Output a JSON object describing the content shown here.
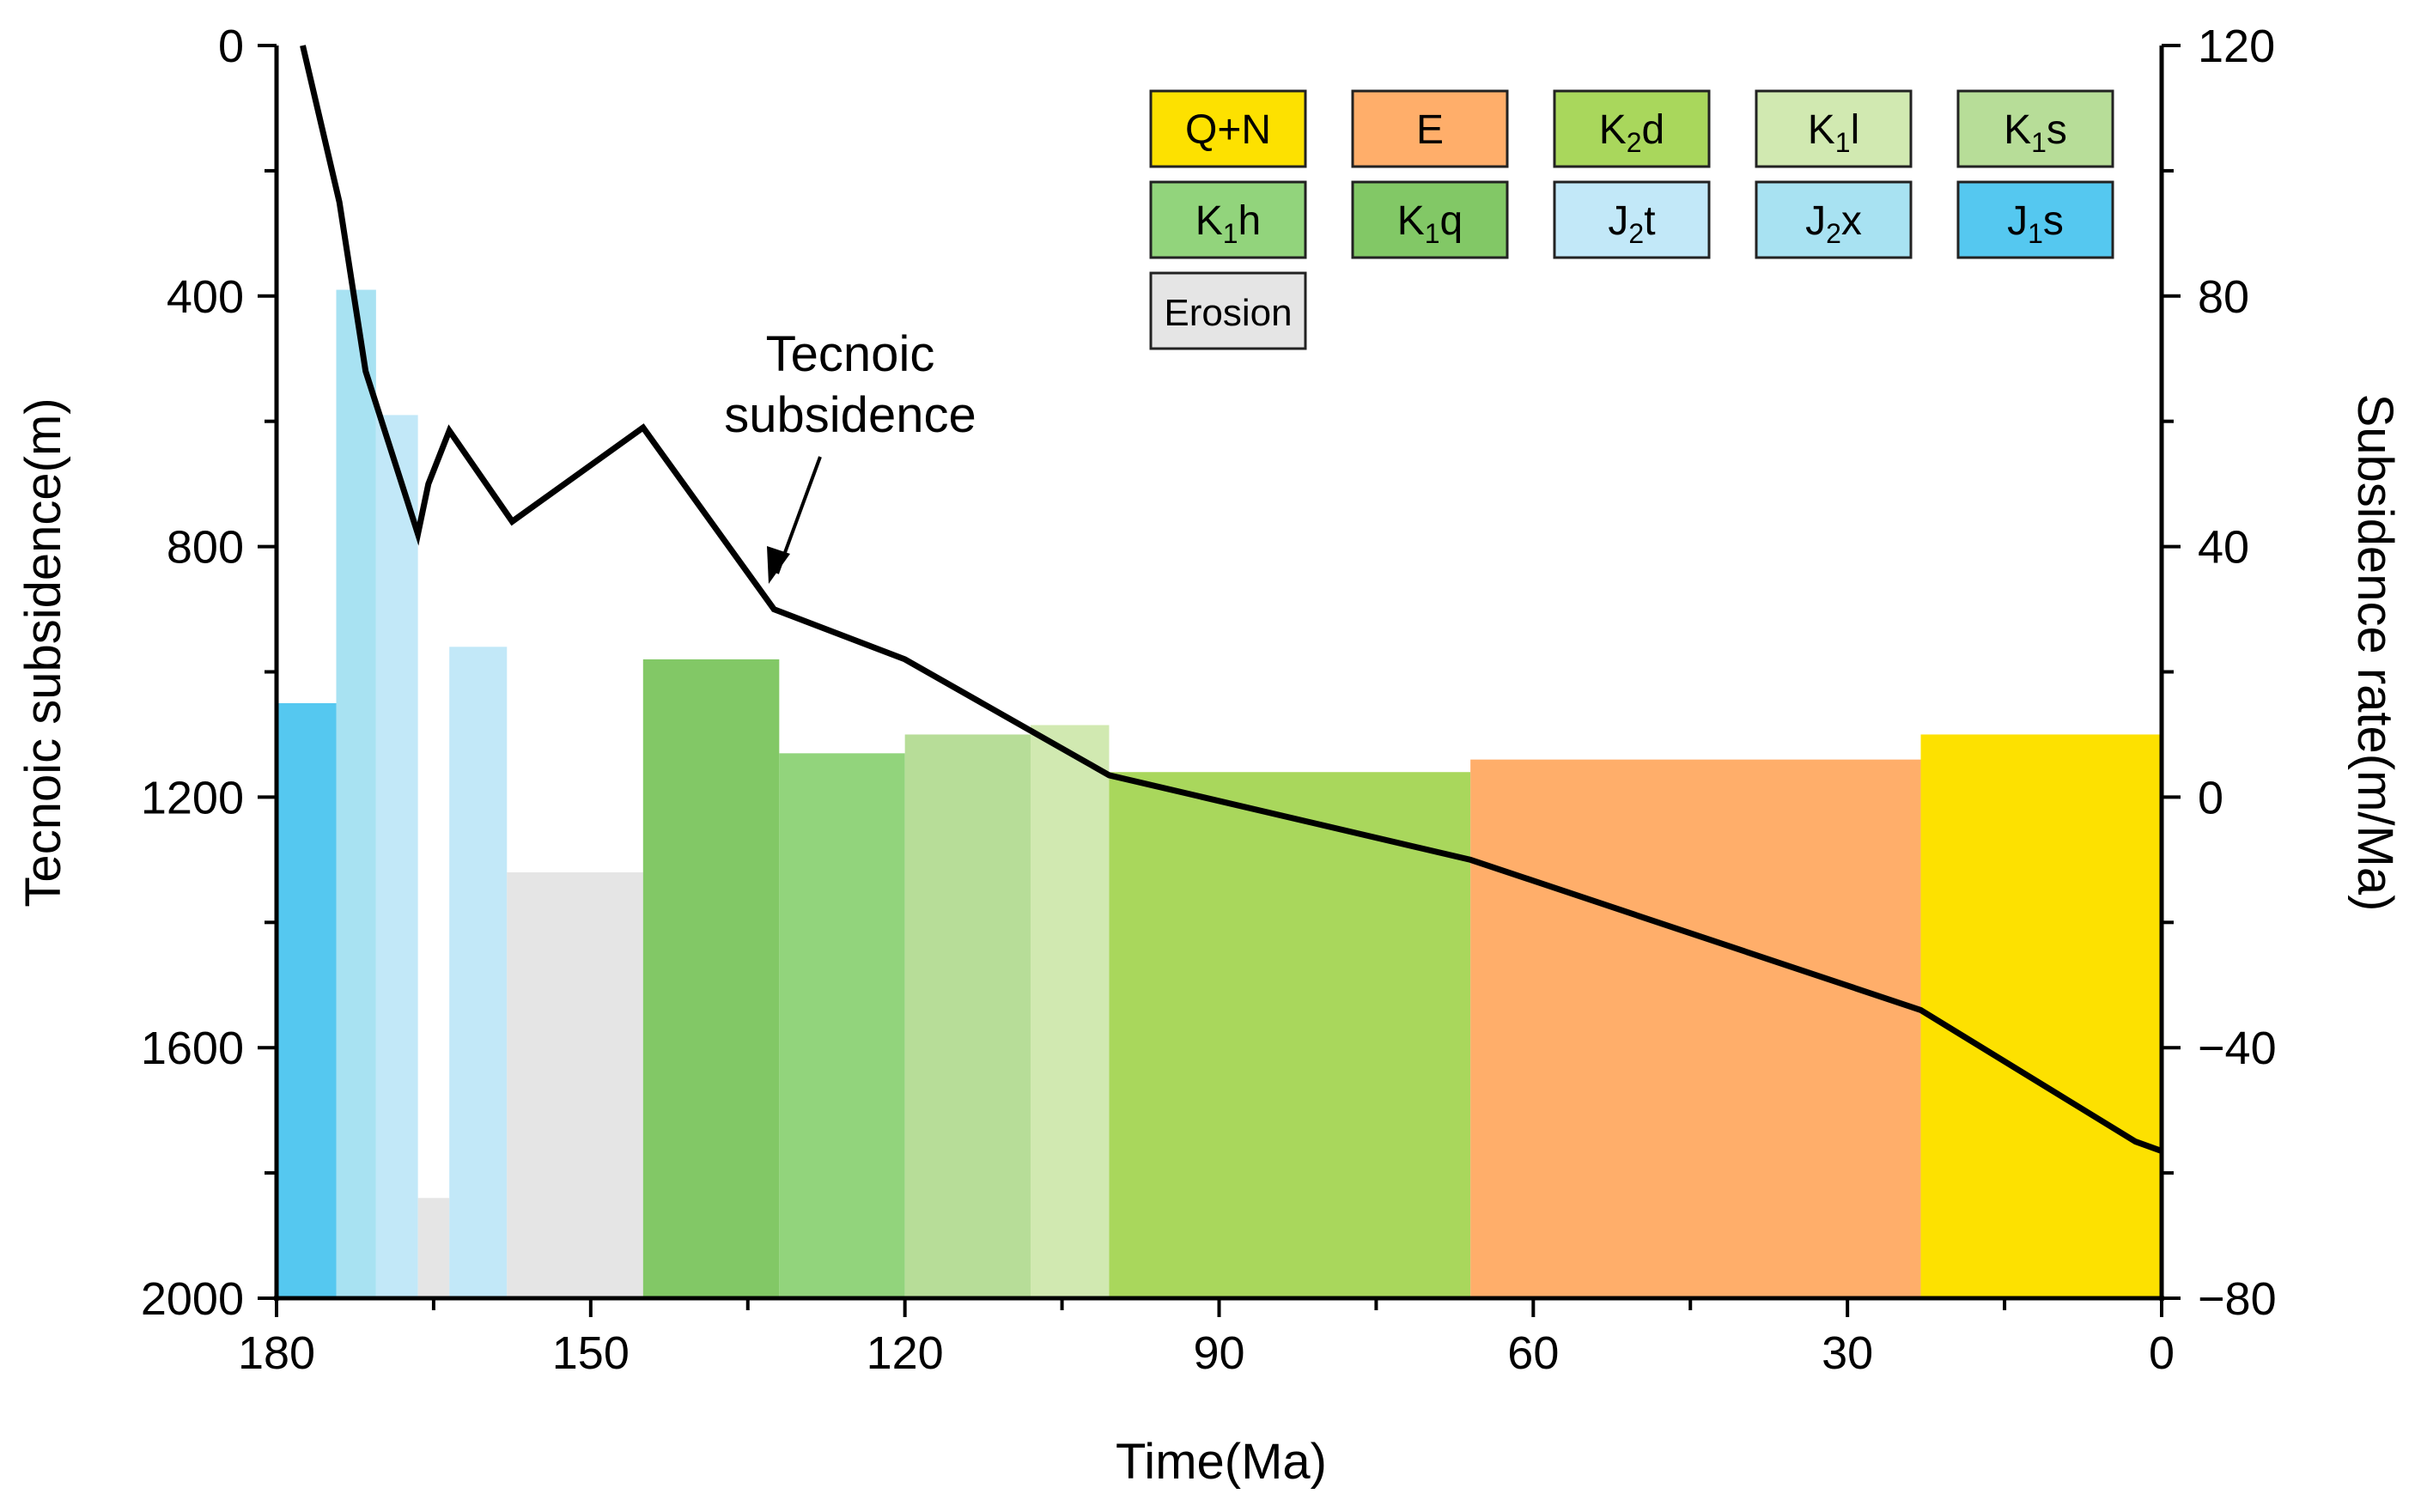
{
  "chart_data": {
    "type": "bar+line",
    "title": "",
    "xlabel": "Time(Ma)",
    "ylabel_left": "Tecnoic subsidence(m)",
    "ylabel_right": "Subsidence rate(m/Ma)",
    "xlim": [
      180,
      0
    ],
    "ylim_left": [
      0,
      2000
    ],
    "ylim_right": [
      -80,
      120
    ],
    "x_ticks": [
      "180",
      "150",
      "120",
      "90",
      "60",
      "30",
      "0"
    ],
    "y_left_ticks": [
      "0",
      "400",
      "800",
      "1200",
      "1600",
      "2000"
    ],
    "y_right_ticks": [
      "120",
      "80",
      "40",
      "0",
      "−40",
      "−80"
    ],
    "bars": [
      {
        "layer": "J1s",
        "x_start": 180,
        "x_end": 174.3,
        "rate": 15,
        "color": "#55c8f0"
      },
      {
        "layer": "J2x",
        "x_start": 174.3,
        "x_end": 170.5,
        "rate": 81,
        "color": "#a8e2f2"
      },
      {
        "layer": "J2t",
        "x_start": 170.5,
        "x_end": 166.5,
        "rate": 61,
        "color": "#c2e8f8"
      },
      {
        "layer": "Erosion",
        "x_start": 166.5,
        "x_end": 163.5,
        "rate": -64,
        "color": "#e5e5e5"
      },
      {
        "layer": "J2t",
        "x_start": 163.5,
        "x_end": 158,
        "rate": 24,
        "color": "#c2e8f8"
      },
      {
        "layer": "Erosion",
        "x_start": 158,
        "x_end": 145,
        "rate": -12,
        "color": "#e5e5e5"
      },
      {
        "layer": "K1q",
        "x_start": 145,
        "x_end": 132,
        "rate": 22,
        "color": "#82c866"
      },
      {
        "layer": "K1h",
        "x_start": 132,
        "x_end": 120,
        "rate": 7,
        "color": "#92d47c"
      },
      {
        "layer": "K1s",
        "x_start": 120,
        "x_end": 108,
        "rate": 10,
        "color": "#b7dd98"
      },
      {
        "layer": "K1l",
        "x_start": 108,
        "x_end": 100.5,
        "rate": 11.5,
        "color": "#d1e9b1"
      },
      {
        "layer": "K2d",
        "x_start": 100.5,
        "x_end": 66,
        "rate": 4,
        "color": "#a9d75c"
      },
      {
        "layer": "E",
        "x_start": 66,
        "x_end": 23,
        "rate": 6,
        "color": "#ffae6a"
      },
      {
        "layer": "Q+N",
        "x_start": 23,
        "x_end": 0,
        "rate": 10,
        "color": "#fde100"
      }
    ],
    "series": [
      {
        "name": "Tecnoic subsidence",
        "x": [
          177.5,
          174,
          171.5,
          166.5,
          165.5,
          163.5,
          157.5,
          145,
          132.5,
          120,
          100.5,
          66,
          23,
          2.5,
          0
        ],
        "y": [
          0,
          250,
          520,
          780,
          700,
          615,
          760,
          610,
          900,
          980,
          1165,
          1300,
          1540,
          1750,
          1765
        ]
      }
    ],
    "annotation": {
      "lines": [
        "Tecnoic",
        "subsidence"
      ]
    },
    "legend": [
      {
        "base": "Q+N",
        "sub": "",
        "tail": "",
        "color": "#fde100"
      },
      {
        "base": "E",
        "sub": "",
        "tail": "",
        "color": "#ffae6a"
      },
      {
        "base": "K",
        "sub": "2",
        "tail": "d",
        "color": "#a9d75c"
      },
      {
        "base": "K",
        "sub": "1",
        "tail": "l",
        "color": "#d1e9b1"
      },
      {
        "base": "K",
        "sub": "1",
        "tail": "s",
        "color": "#b7dd98"
      },
      {
        "base": "K",
        "sub": "1",
        "tail": "h",
        "color": "#92d47c"
      },
      {
        "base": "K",
        "sub": "1",
        "tail": "q",
        "color": "#82c866"
      },
      {
        "base": "J",
        "sub": "2",
        "tail": "t",
        "color": "#c2e8f8"
      },
      {
        "base": "J",
        "sub": "2",
        "tail": "x",
        "color": "#a8e2f2"
      },
      {
        "base": "J",
        "sub": "1",
        "tail": "s",
        "color": "#55c8f0"
      },
      {
        "base": "Erosion",
        "sub": "",
        "tail": "",
        "color": "#e5e5e5"
      }
    ],
    "legend_position": "top-right"
  }
}
